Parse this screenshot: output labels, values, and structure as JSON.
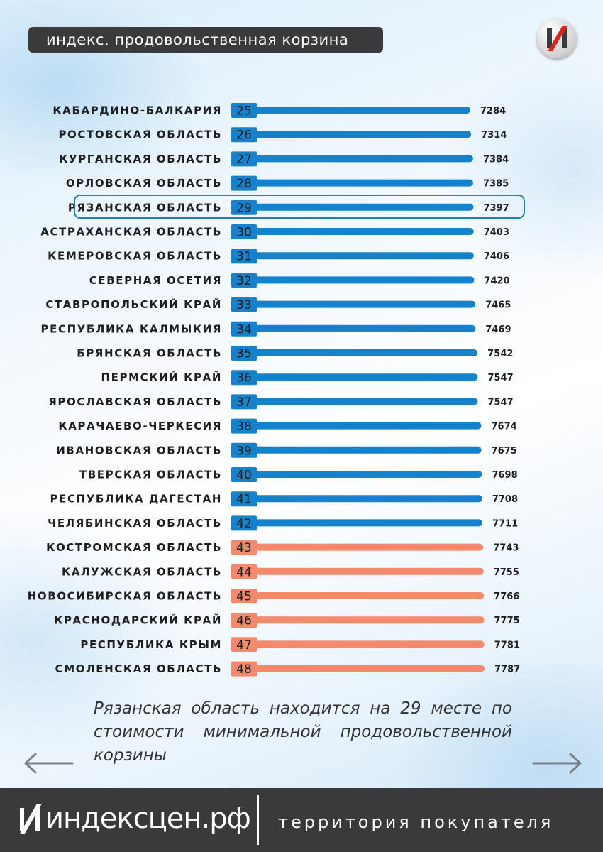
{
  "header": {
    "title": "индекс. продовольственная корзина"
  },
  "logo": {
    "icon": "index-logo-icon"
  },
  "colors": {
    "blue": "#1482cc",
    "orange": "#f4896b",
    "dark": "#3a3a3c",
    "highlight": "#1f7fb8"
  },
  "chart_data": {
    "type": "bar",
    "orientation": "horizontal",
    "highlight": "РЯЗАНСКАЯ ОБЛАСТЬ",
    "rows": [
      {
        "region": "КАБАРДИНО-БАЛКАРИЯ",
        "rank": "25",
        "value": 7284,
        "color": "blue"
      },
      {
        "region": "РОСТОВСКАЯ ОБЛАСТЬ",
        "rank": "26",
        "value": 7314,
        "color": "blue"
      },
      {
        "region": "КУРГАНСКАЯ ОБЛАСТЬ",
        "rank": "27",
        "value": 7384,
        "color": "blue"
      },
      {
        "region": "ОРЛОВСКАЯ ОБЛАСТЬ",
        "rank": "28",
        "value": 7385,
        "color": "blue"
      },
      {
        "region": "РЯЗАНСКАЯ ОБЛАСТЬ",
        "rank": "29",
        "value": 7397,
        "color": "blue"
      },
      {
        "region": "АСТРАХАНСКАЯ ОБЛАСТЬ",
        "rank": "30",
        "value": 7403,
        "color": "blue"
      },
      {
        "region": "КЕМЕРОВСКАЯ ОБЛАСТЬ",
        "rank": "31",
        "value": 7406,
        "color": "blue"
      },
      {
        "region": "СЕВЕРНАЯ ОСЕТИЯ",
        "rank": "32",
        "value": 7420,
        "color": "blue"
      },
      {
        "region": "СТАВРОПОЛЬСКИЙ КРАЙ",
        "rank": "33",
        "value": 7465,
        "color": "blue"
      },
      {
        "region": "РЕСПУБЛИКА КАЛМЫКИЯ",
        "rank": "34",
        "value": 7469,
        "color": "blue"
      },
      {
        "region": "БРЯНСКАЯ ОБЛАСТЬ",
        "rank": "35",
        "value": 7542,
        "color": "blue"
      },
      {
        "region": "ПЕРМСКИЙ КРАЙ",
        "rank": "36",
        "value": 7547,
        "color": "blue"
      },
      {
        "region": "ЯРОСЛАВСКАЯ ОБЛАСТЬ",
        "rank": "37",
        "value": 7547,
        "color": "blue"
      },
      {
        "region": "КАРАЧАЕВО-ЧЕРКЕСИЯ",
        "rank": "38",
        "value": 7674,
        "color": "blue"
      },
      {
        "region": "ИВАНОВСКАЯ ОБЛАСТЬ",
        "rank": "39",
        "value": 7675,
        "color": "blue"
      },
      {
        "region": "ТВЕРСКАЯ ОБЛАСТЬ",
        "rank": "40",
        "value": 7698,
        "color": "blue"
      },
      {
        "region": "РЕСПУБЛИКА ДАГЕСТАН",
        "rank": "41",
        "value": 7708,
        "color": "blue"
      },
      {
        "region": "ЧЕЛЯБИНСКАЯ ОБЛАСТЬ",
        "rank": "42",
        "value": 7711,
        "color": "blue"
      },
      {
        "region": "КОСТРОМСКАЯ ОБЛАСТЬ",
        "rank": "43",
        "value": 7743,
        "color": "orange"
      },
      {
        "region": "КАЛУЖСКАЯ ОБЛАСТЬ",
        "rank": "44",
        "value": 7755,
        "color": "orange"
      },
      {
        "region": "НОВОСИБИРСКАЯ ОБЛАСТЬ",
        "rank": "45",
        "value": 7766,
        "color": "orange"
      },
      {
        "region": "КРАСНОДАРСКИЙ КРАЙ",
        "rank": "46",
        "value": 7775,
        "color": "orange"
      },
      {
        "region": "РЕСПУБЛИКА КРЫМ",
        "rank": "47",
        "value": 7781,
        "color": "orange"
      },
      {
        "region": "СМОЛЕНСКАЯ ОБЛАСТЬ",
        "rank": "48",
        "value": 7787,
        "color": "orange"
      }
    ]
  },
  "caption": "Рязанская область находится на 29 месте по стоимости минимальной продовольственной корзины",
  "navigation": {
    "prev_icon": "arrow-left-icon",
    "next_icon": "arrow-right-icon"
  },
  "footer": {
    "brand": "индексцен.рф",
    "tagline": "территория покупателя"
  }
}
